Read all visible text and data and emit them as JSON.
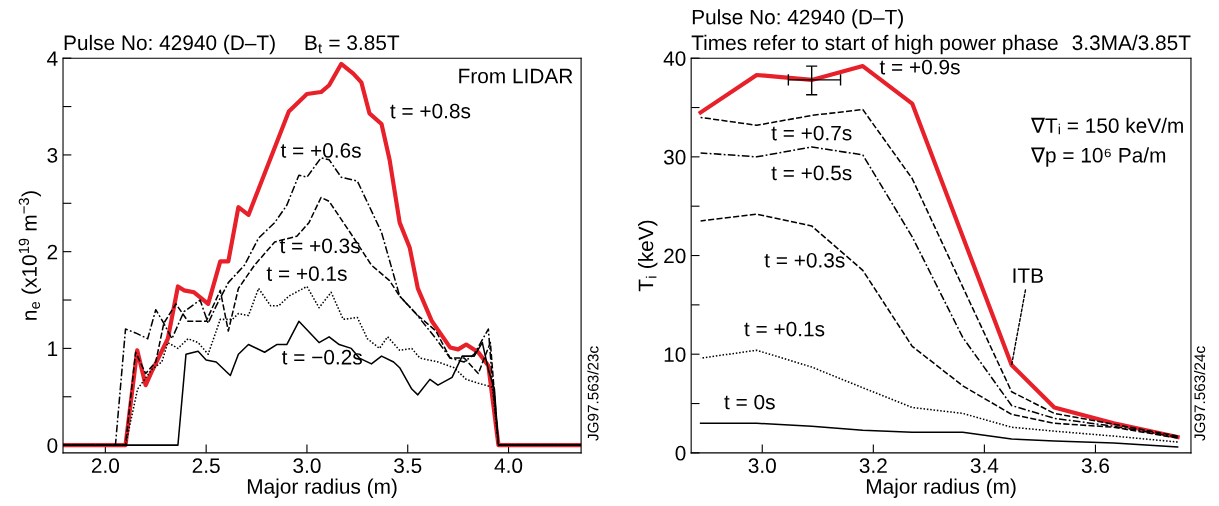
{
  "chart_data": [
    {
      "type": "line",
      "title": "Pulse No: 42940 (D–T)",
      "xlabel": "Major radius (m)",
      "ylabel": "n$_{e}$ (x10$^{19}$ m$^{−3}$)",
      "annotations": [
        "B$_{t}$ = 3.85T",
        "From LIDAR",
        "JG97.563/23c"
      ],
      "xlim": [
        1.79,
        4.36
      ],
      "xticks": [
        {
          "value": 2,
          "label": "2.0"
        },
        {
          "value": 2.5,
          "label": "2.5"
        },
        {
          "value": 3,
          "label": "3.0"
        },
        {
          "value": 3.5,
          "label": "3.5"
        },
        {
          "value": 4,
          "label": "4.0"
        }
      ],
      "ylim": [
        -0.08,
        4
      ],
      "yticks": [
        0,
        {
          "value": 0.5,
          "label": null
        },
        1,
        {
          "value": 1.5,
          "label": null
        },
        2,
        {
          "value": 2.5,
          "label": null
        },
        3,
        {
          "value": 3.5,
          "label": null
        },
        4
      ],
      "grid": false,
      "legend": false,
      "series": [
        {
          "name": "t = +0.8s",
          "color": "#e8202a",
          "line_style": "solid",
          "x": [
            1.79,
            2.1,
            2.158,
            2.2,
            2.23,
            2.31,
            2.36,
            2.39,
            2.44,
            2.51,
            2.57,
            2.61,
            2.66,
            2.71,
            2.91,
            3.0,
            3.07,
            3.11,
            3.17,
            3.23,
            3.27,
            3.31,
            3.37,
            3.41,
            3.46,
            3.51,
            3.55,
            3.62,
            3.71,
            3.75,
            3.79,
            3.85,
            3.9,
            3.95,
            4.36
          ],
          "values": [
            0,
            0,
            0.98,
            0.62,
            0.76,
            1.1,
            1.64,
            1.6,
            1.58,
            1.46,
            1.9,
            1.9,
            2.46,
            2.38,
            3.45,
            3.63,
            3.65,
            3.72,
            3.94,
            3.84,
            3.75,
            3.43,
            3.32,
            2.95,
            2.3,
            2.04,
            1.62,
            1.28,
            1.01,
            0.99,
            1.04,
            0.96,
            0.82,
            0,
            0
          ]
        },
        {
          "name": "t = +0.6s",
          "color": "#000000",
          "line_style": "dashdot",
          "x": [
            1.79,
            2.05,
            2.1,
            2.15,
            2.21,
            2.25,
            2.29,
            2.33,
            2.39,
            2.47,
            2.51,
            2.55,
            2.61,
            2.69,
            2.76,
            2.84,
            2.9,
            2.96,
            3.0,
            3.07,
            3.11,
            3.17,
            3.25,
            3.37,
            3.46,
            3.54,
            3.64,
            3.71,
            3.78,
            3.83,
            3.9,
            3.92,
            3.95,
            4.36
          ],
          "values": [
            0,
            0,
            1.2,
            1.16,
            1.1,
            1.4,
            1.26,
            1.1,
            1.38,
            1.5,
            1.26,
            1.44,
            1.68,
            1.86,
            2.14,
            2.3,
            2.48,
            2.79,
            2.77,
            2.97,
            2.95,
            2.77,
            2.73,
            2.2,
            1.54,
            1.36,
            1.1,
            0.9,
            0.86,
            0.94,
            1.2,
            0.66,
            0,
            0
          ]
        },
        {
          "name": "t = +0.3s",
          "color": "#000000",
          "line_style": "dashed",
          "x": [
            1.79,
            2.1,
            2.15,
            2.2,
            2.25,
            2.29,
            2.35,
            2.41,
            2.5,
            2.57,
            2.61,
            2.66,
            2.74,
            2.84,
            2.95,
            3.01,
            3.07,
            3.11,
            3.22,
            3.32,
            3.41,
            3.46,
            3.55,
            3.64,
            3.71,
            3.78,
            3.85,
            3.91,
            3.95,
            4.36
          ],
          "values": [
            0,
            0,
            0.96,
            0.74,
            0.86,
            1.26,
            1.46,
            1.28,
            1.28,
            1.6,
            1.18,
            1.62,
            1.86,
            2.1,
            2.16,
            2.3,
            2.56,
            2.52,
            2.18,
            1.86,
            1.7,
            1.54,
            1.34,
            1.18,
            0.9,
            0.9,
            0.74,
            1.06,
            0,
            0
          ]
        },
        {
          "name": "t = +0.1s",
          "color": "#000000",
          "line_style": "dotted",
          "x": [
            1.79,
            2.1,
            2.16,
            2.23,
            2.28,
            2.31,
            2.36,
            2.41,
            2.46,
            2.51,
            2.57,
            2.63,
            2.66,
            2.71,
            2.76,
            2.82,
            2.86,
            2.91,
            3.0,
            3.06,
            3.12,
            3.18,
            3.25,
            3.3,
            3.36,
            3.4,
            3.46,
            3.52,
            3.56,
            3.65,
            3.73,
            3.79,
            3.85,
            3.92,
            3.95,
            4.36
          ],
          "values": [
            0,
            0,
            0.58,
            0.78,
            0.86,
            1.06,
            1.0,
            1.1,
            1.06,
            0.94,
            1.3,
            1.3,
            1.36,
            1.34,
            1.62,
            1.44,
            1.44,
            1.54,
            1.64,
            1.42,
            1.58,
            1.3,
            1.32,
            1.1,
            1.0,
            1.12,
            0.98,
            1.0,
            0.9,
            0.86,
            0.8,
            0.68,
            0.64,
            0.6,
            0,
            0
          ]
        },
        {
          "name": "t = −0.2s",
          "color": "#000000",
          "line_style": "solid",
          "x": [
            1.79,
            2.36,
            2.4,
            2.46,
            2.5,
            2.55,
            2.62,
            2.66,
            2.71,
            2.79,
            2.85,
            2.9,
            2.96,
            3.06,
            3.11,
            3.16,
            3.22,
            3.26,
            3.32,
            3.37,
            3.43,
            3.46,
            3.52,
            3.55,
            3.61,
            3.65,
            3.72,
            3.77,
            3.83,
            3.87,
            3.9,
            3.93,
            3.95,
            4.36
          ],
          "values": [
            0,
            0,
            0.94,
            0.97,
            0.88,
            0.86,
            0.72,
            0.94,
            1.04,
            0.96,
            1.04,
            1.04,
            1.28,
            1.06,
            1.12,
            1.04,
            1.0,
            0.9,
            0.84,
            0.92,
            0.86,
            0.8,
            0.58,
            0.52,
            0.68,
            0.62,
            0.7,
            0.92,
            0.92,
            1.06,
            0.78,
            0.58,
            0,
            0
          ]
        }
      ]
    },
    {
      "type": "line",
      "title": "Pulse No: 42940 (D–T)",
      "subtitle": "Times refer to start of high power phase",
      "xlabel": "Major radius (m)",
      "ylabel": "T$_{i}$ (keV)",
      "annotations": [
        "3.3MA/3.85T",
        "∇Tᵢ = 150 keV/m",
        "∇p = 10⁶ Pa/m",
        {
          "text": "ITB",
          "x": 3.449,
          "y": 8.9
        },
        "JG97.563/24c"
      ],
      "xlim": [
        2.872,
        3.772
      ],
      "xticks": [
        {
          "value": 3,
          "label": "3.0"
        },
        {
          "value": 3.2,
          "label": "3.2"
        },
        {
          "value": 3.4,
          "label": "3.4"
        },
        {
          "value": 3.6,
          "label": "3.6"
        }
      ],
      "ylim": [
        0,
        40
      ],
      "yticks": [
        0,
        {
          "value": 5,
          "label": null
        },
        10,
        {
          "value": 15,
          "label": null
        },
        20,
        {
          "value": 25,
          "label": null
        },
        30,
        {
          "value": 35,
          "label": null
        },
        40
      ],
      "grid": false,
      "legend": false,
      "series": [
        {
          "name": "t = +0.9s",
          "color": "#e8202a",
          "line_style": "solid",
          "x": [
            2.889,
            2.99,
            3.089,
            3.181,
            3.27,
            3.449,
            3.526,
            3.633,
            3.748
          ],
          "values": [
            34.5,
            38.3,
            37.8,
            39.2,
            35.4,
            8.9,
            4.6,
            3.0,
            1.6
          ],
          "errors": [
            null,
            null,
            [
              36.3,
              39.2
            ],
            null,
            null,
            null,
            null,
            null,
            null
          ],
          "xerrors": [
            null,
            null,
            [
              3.047,
              3.141
            ],
            null,
            null,
            null,
            null,
            null,
            null
          ]
        },
        {
          "name": "t = +0.7s",
          "color": "#000000",
          "line_style": "dashed",
          "x": [
            2.889,
            2.99,
            3.089,
            3.181,
            3.27,
            3.449,
            3.526,
            3.633,
            3.748
          ],
          "values": [
            34.0,
            33.2,
            34.2,
            34.8,
            27.8,
            6.2,
            4.0,
            2.9,
            1.7
          ]
        },
        {
          "name": "t = +0.5s",
          "color": "#000000",
          "line_style": "dashdot",
          "x": [
            2.889,
            2.99,
            3.089,
            3.181,
            3.27,
            3.361,
            3.449,
            3.526,
            3.633,
            3.748
          ],
          "values": [
            30.4,
            30.0,
            31.0,
            30.2,
            21.9,
            11.7,
            4.8,
            3.5,
            2.7,
            1.6
          ]
        },
        {
          "name": "t = +0.3s",
          "color": "#000000",
          "line_style": "dashed",
          "x": [
            2.889,
            2.99,
            3.089,
            3.181,
            3.27,
            3.361,
            3.449,
            3.526,
            3.633,
            3.748
          ],
          "values": [
            23.5,
            24.2,
            23.0,
            18.5,
            10.8,
            6.8,
            3.9,
            3.0,
            2.6,
            1.5
          ]
        },
        {
          "name": "t = +0.1s",
          "color": "#000000",
          "line_style": "dotted",
          "x": [
            2.889,
            2.99,
            3.089,
            3.181,
            3.27,
            3.361,
            3.449,
            3.526,
            3.633,
            3.748
          ],
          "values": [
            9.6,
            10.4,
            8.7,
            6.6,
            4.6,
            4.0,
            2.6,
            2.2,
            1.7,
            1.1
          ]
        },
        {
          "name": "t = 0s",
          "color": "#000000",
          "line_style": "solid",
          "x": [
            2.889,
            2.99,
            3.089,
            3.181,
            3.27,
            3.361,
            3.449,
            3.526,
            3.633,
            3.748
          ],
          "values": [
            3.0,
            3.0,
            2.7,
            2.3,
            2.1,
            2.1,
            1.4,
            1.2,
            1.0,
            0.6
          ]
        }
      ]
    }
  ]
}
